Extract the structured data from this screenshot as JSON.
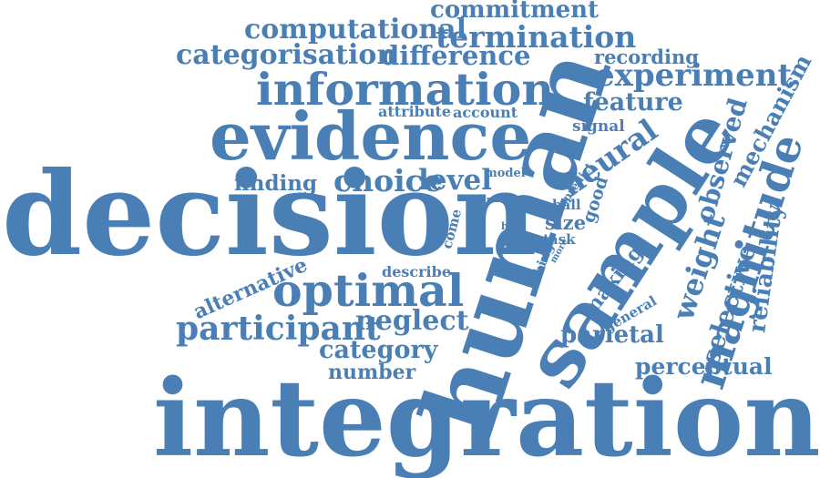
{
  "color": "#4a7fb5",
  "words": [
    {
      "text": "commitment"
    },
    {
      "text": "computational"
    },
    {
      "text": "termination"
    },
    {
      "text": "categorisation"
    },
    {
      "text": "difference"
    },
    {
      "text": "recording"
    },
    {
      "text": "experiment"
    },
    {
      "text": "information"
    },
    {
      "text": "mechanism"
    },
    {
      "text": "feature"
    },
    {
      "text": "attribute"
    },
    {
      "text": "account"
    },
    {
      "text": "observed"
    },
    {
      "text": "evidence"
    },
    {
      "text": "signal"
    },
    {
      "text": "neural"
    },
    {
      "text": "human"
    },
    {
      "text": "sample"
    },
    {
      "text": "finding"
    },
    {
      "text": "choice"
    },
    {
      "text": "level"
    },
    {
      "text": "model"
    },
    {
      "text": "predict"
    },
    {
      "text": "good"
    },
    {
      "text": "magnitude"
    },
    {
      "text": "decision"
    },
    {
      "text": "pink"
    },
    {
      "text": "blue"
    },
    {
      "text": "come"
    },
    {
      "text": "ball"
    },
    {
      "text": "size"
    },
    {
      "text": "task"
    },
    {
      "text": "more"
    },
    {
      "text": "thing"
    },
    {
      "text": "weight"
    },
    {
      "text": "reliability"
    },
    {
      "text": "alternative"
    },
    {
      "text": "describe"
    },
    {
      "text": "optimal"
    },
    {
      "text": "making"
    },
    {
      "text": "selective"
    },
    {
      "text": "general"
    },
    {
      "text": "participant"
    },
    {
      "text": "neglect"
    },
    {
      "text": "parietal"
    },
    {
      "text": "category"
    },
    {
      "text": "number"
    },
    {
      "text": "perceptual"
    },
    {
      "text": "integration"
    }
  ]
}
